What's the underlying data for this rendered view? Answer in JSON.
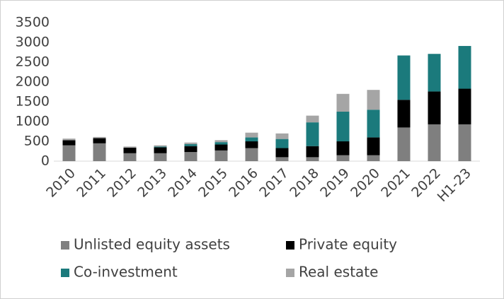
{
  "chart_data": {
    "type": "bar",
    "stacked": true,
    "categories": [
      "2010",
      "2011",
      "2012",
      "2013",
      "2014",
      "2015",
      "2016",
      "2017",
      "2018",
      "2019",
      "2020",
      "2021",
      "2022",
      "H1-23"
    ],
    "series": [
      {
        "name": "Unlisted equity assets",
        "color": "#7f7f7f",
        "values": [
          400,
          450,
          200,
          200,
          230,
          270,
          330,
          100,
          100,
          150,
          150,
          850,
          930,
          930
        ]
      },
      {
        "name": "Private equity",
        "color": "#000000",
        "values": [
          130,
          130,
          140,
          150,
          150,
          150,
          170,
          230,
          280,
          350,
          450,
          700,
          830,
          900
        ]
      },
      {
        "name": "Co-investment",
        "color": "#1b7a7c",
        "values": [
          0,
          0,
          0,
          20,
          50,
          60,
          100,
          230,
          600,
          750,
          700,
          1120,
          950,
          1080
        ]
      },
      {
        "name": "Real estate",
        "color": "#a5a5a5",
        "values": [
          40,
          30,
          30,
          30,
          40,
          50,
          120,
          140,
          170,
          450,
          500,
          0,
          0,
          0
        ]
      }
    ],
    "ylim": [
      0,
      3500
    ],
    "yticks": [
      0,
      500,
      1000,
      1500,
      2000,
      2500,
      3000,
      3500
    ],
    "grid": false,
    "legend": "bottom"
  }
}
